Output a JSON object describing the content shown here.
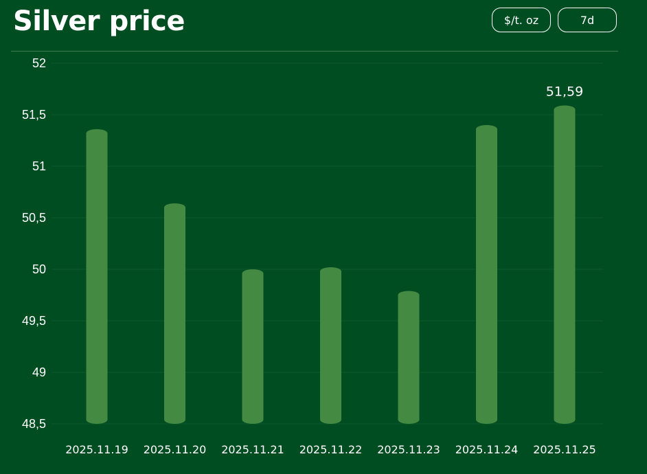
{
  "header": {
    "title": "Silver price",
    "unit_label": "$/t. oz",
    "range_label": "7d"
  },
  "colors": {
    "background": "#004d22",
    "bar": "#448a42",
    "grid": "#0a5a2a",
    "text": "#ffffff"
  },
  "chart_data": {
    "type": "bar",
    "categories": [
      "2025.11.19",
      "2025.11.20",
      "2025.11.21",
      "2025.11.22",
      "2025.11.23",
      "2025.11.24",
      "2025.11.25"
    ],
    "values": [
      51.36,
      50.64,
      50.0,
      50.02,
      49.79,
      51.4,
      51.59
    ],
    "ylim": [
      48.5,
      52
    ],
    "yticks": [
      48.5,
      49,
      49.5,
      50,
      50.5,
      51,
      51.5,
      52
    ],
    "ytick_labels": [
      "48,5",
      "49",
      "49,5",
      "50",
      "50,5",
      "51",
      "51,5",
      "52"
    ],
    "data_labels": [
      {
        "category": "2025.11.25",
        "text": "51,59"
      }
    ],
    "grid": true,
    "legend": "none"
  }
}
